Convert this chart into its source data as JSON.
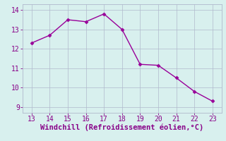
{
  "x": [
    13,
    14,
    15,
    16,
    17,
    18,
    19,
    20,
    21,
    22,
    23
  ],
  "y": [
    12.3,
    12.7,
    13.5,
    13.4,
    13.8,
    13.0,
    11.2,
    11.15,
    10.5,
    9.8,
    9.3
  ],
  "line_color": "#990099",
  "marker": "D",
  "marker_size": 2.5,
  "line_width": 1.0,
  "xlabel": "Windchill (Refroidissement éolien,°C)",
  "xlabel_color": "#880088",
  "xlim": [
    12.5,
    23.5
  ],
  "ylim": [
    8.7,
    14.3
  ],
  "yticks": [
    9,
    10,
    11,
    12,
    13,
    14
  ],
  "xticks": [
    13,
    14,
    15,
    16,
    17,
    18,
    19,
    20,
    21,
    22,
    23
  ],
  "background_color": "#d8f0ee",
  "grid_color": "#b0b8cc",
  "tick_color": "#880088",
  "xlabel_fontsize": 7.5,
  "tick_fontsize": 7.0,
  "fig_width": 3.2,
  "fig_height": 2.0,
  "dpi": 100
}
